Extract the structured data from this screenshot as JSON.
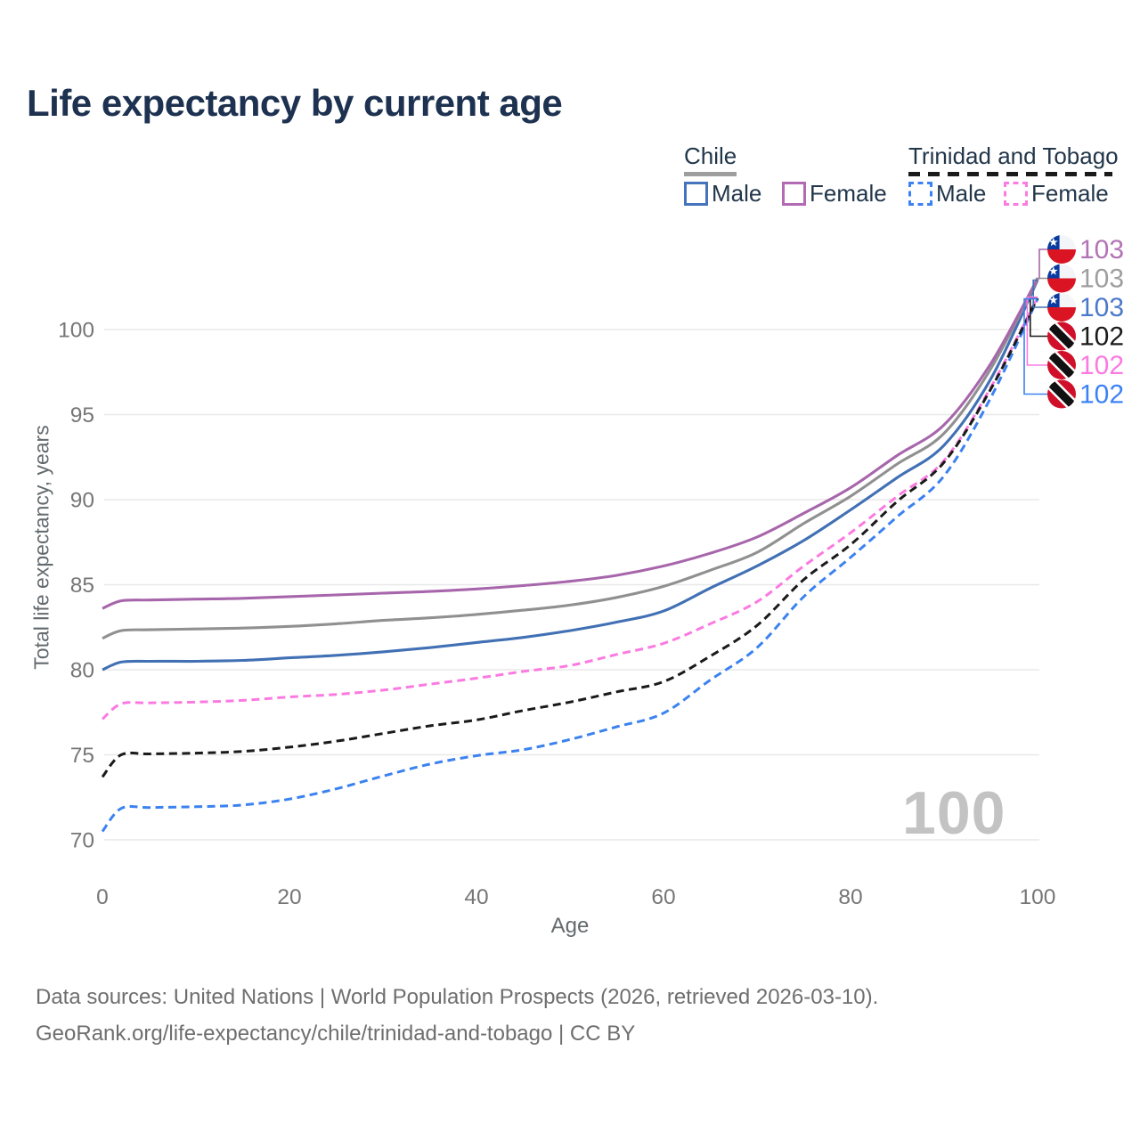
{
  "title": "Life expectancy by current age",
  "watermark": "100",
  "legend": {
    "groups": [
      {
        "title": "Chile",
        "line_style": "solid",
        "underline_color": "#9e9e9e",
        "items": [
          {
            "label": "Male",
            "color": "#4674bc"
          },
          {
            "label": "Female",
            "color": "#b36ab4"
          }
        ]
      },
      {
        "title": "Trinidad and Tobago",
        "line_style": "dashed",
        "underline_color": "#1a1a1a",
        "items": [
          {
            "label": "Male",
            "color": "#3d82f5"
          },
          {
            "label": "Female",
            "color": "#fb7ce1"
          }
        ]
      }
    ]
  },
  "chart_data": {
    "type": "line",
    "title": "Life expectancy by current age",
    "xlabel": "Age",
    "ylabel": "Total life expectancy, years",
    "xlim": [
      0,
      100
    ],
    "ylim": [
      70,
      103.5
    ],
    "x_ticks": [
      0,
      20,
      40,
      60,
      80,
      100
    ],
    "y_ticks": [
      70,
      75,
      80,
      85,
      90,
      95,
      100
    ],
    "grid": "horizontal",
    "legend_position": "top-right",
    "ages": [
      0,
      2,
      5,
      10,
      15,
      20,
      25,
      30,
      35,
      40,
      45,
      50,
      55,
      60,
      65,
      70,
      75,
      80,
      85,
      90,
      95,
      100
    ],
    "series": [
      {
        "id": "chile-female",
        "country": "Chile",
        "sex": "Female",
        "style": "solid",
        "color": "#a766ab",
        "label_color": "#b273b5",
        "flag": "chile",
        "end_label": "103",
        "values": [
          83.6,
          84.05,
          84.1,
          84.15,
          84.2,
          84.3,
          84.4,
          84.5,
          84.6,
          84.75,
          84.95,
          85.2,
          85.55,
          86.1,
          86.85,
          87.8,
          89.2,
          90.7,
          92.6,
          94.4,
          98.0,
          103.0
        ]
      },
      {
        "id": "chile-both",
        "country": "Chile",
        "sex": "Both sexes",
        "style": "solid",
        "color": "#909090",
        "label_color": "#9e9e9e",
        "flag": "chile",
        "end_label": "103",
        "values": [
          81.85,
          82.3,
          82.35,
          82.4,
          82.45,
          82.55,
          82.7,
          82.9,
          83.05,
          83.25,
          83.5,
          83.8,
          84.25,
          84.9,
          85.85,
          86.9,
          88.6,
          90.2,
          92.1,
          93.9,
          97.7,
          102.95
        ]
      },
      {
        "id": "chile-male",
        "country": "Chile",
        "sex": "Male",
        "style": "solid",
        "color": "#4170b4",
        "label_color": "#4b79c9",
        "flag": "chile",
        "end_label": "103",
        "values": [
          80.0,
          80.45,
          80.5,
          80.5,
          80.55,
          80.7,
          80.85,
          81.05,
          81.3,
          81.6,
          81.9,
          82.3,
          82.8,
          83.45,
          84.8,
          86.1,
          87.6,
          89.4,
          91.3,
          93.2,
          97.1,
          102.9
        ]
      },
      {
        "id": "tt-both",
        "country": "Trinidad and Tobago",
        "sex": "Both sexes",
        "style": "dashed",
        "color": "#1a1a1a",
        "label_color": "#1a1a1a",
        "flag": "tt",
        "end_label": "102",
        "values": [
          73.7,
          75.0,
          75.05,
          75.1,
          75.2,
          75.45,
          75.8,
          76.25,
          76.7,
          77.05,
          77.6,
          78.1,
          78.7,
          79.3,
          80.8,
          82.6,
          85.3,
          87.35,
          89.9,
          92.2,
          96.5,
          101.85
        ]
      },
      {
        "id": "tt-female",
        "country": "Trinidad and Tobago",
        "sex": "Female",
        "style": "dashed",
        "color": "#fb7ae1",
        "label_color": "#fb7ae1",
        "flag": "tt",
        "end_label": "102",
        "values": [
          77.1,
          78.0,
          78.05,
          78.1,
          78.2,
          78.4,
          78.55,
          78.8,
          79.15,
          79.5,
          79.9,
          80.25,
          80.9,
          81.55,
          82.7,
          84.0,
          86.1,
          88.05,
          90.2,
          92.3,
          96.6,
          101.9
        ]
      },
      {
        "id": "tt-male",
        "country": "Trinidad and Tobago",
        "sex": "Male",
        "style": "dashed",
        "color": "#3b82f0",
        "label_color": "#3d82f5",
        "flag": "tt",
        "end_label": "102",
        "values": [
          70.5,
          71.85,
          71.9,
          71.95,
          72.05,
          72.4,
          73.0,
          73.75,
          74.45,
          74.95,
          75.3,
          75.9,
          76.65,
          77.45,
          79.4,
          81.3,
          84.3,
          86.6,
          89.0,
          91.4,
          96.0,
          101.8
        ]
      }
    ]
  },
  "footer": {
    "line1": "Data sources: United Nations | World Population Prospects (2026, retrieved 2026-03-10).",
    "line2": "GeoRank.org/life-expectancy/chile/trinidad-and-tobago | CC BY"
  }
}
